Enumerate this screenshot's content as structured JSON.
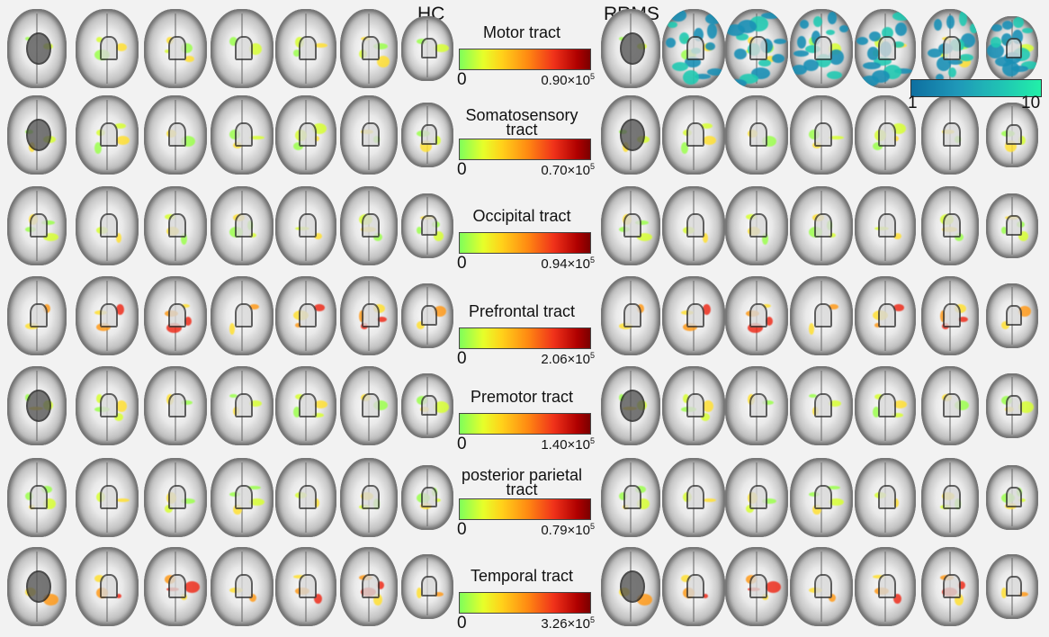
{
  "groups": {
    "left": "HC",
    "right": "RRMS"
  },
  "tracts": [
    {
      "title": "Motor tract",
      "min": "0",
      "max_coef": "0.90×10",
      "max_exp": "5"
    },
    {
      "title": "Somatosensory tract",
      "min": "0",
      "max_coef": "0.70×10",
      "max_exp": "5"
    },
    {
      "title": "Occipital tract",
      "min": "0",
      "max_coef": "0.94×10",
      "max_exp": "5"
    },
    {
      "title": "Prefrontal tract",
      "min": "0",
      "max_coef": "2.06×10",
      "max_exp": "5"
    },
    {
      "title": "Premotor tract",
      "min": "0",
      "max_coef": "1.40×10",
      "max_exp": "5"
    },
    {
      "title": "posterior parietal tract",
      "min": "0",
      "max_coef": "0.79×10",
      "max_exp": "5"
    },
    {
      "title": "Temporal tract",
      "min": "0",
      "max_coef": "3.26×10",
      "max_exp": "5"
    }
  ],
  "lesion_colorbar": {
    "min": "1",
    "max": "10"
  },
  "colors": {
    "tract_scale": [
      "#7fff5a",
      "#e6ff2a",
      "#ffd21a",
      "#ff8a12",
      "#f0321a",
      "#7a0000"
    ],
    "lesion_scale": [
      "#0d6fa0",
      "#1f97b8",
      "#20c4b4",
      "#22f0a8"
    ],
    "background": "#f2f2f2"
  }
}
